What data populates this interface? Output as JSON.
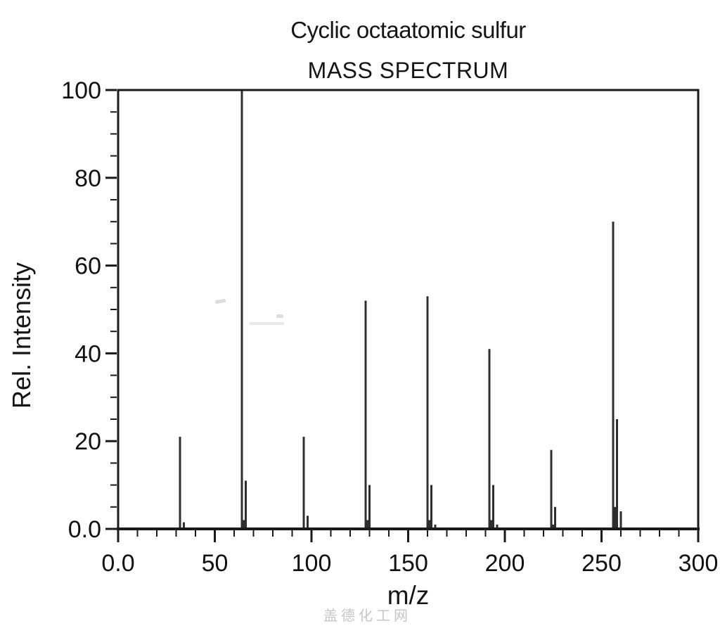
{
  "header": {
    "title": "Cyclic octaatomic sulfur",
    "subtitle": "MASS SPECTRUM"
  },
  "watermark": {
    "text": "盖德化工网",
    "color": "#c6c6c6"
  },
  "colors": {
    "axis": "#1a1a1a",
    "text": "#111111",
    "peak": "#2e2e2e",
    "background": "#ffffff"
  },
  "chart_data": {
    "type": "bar",
    "title": "Cyclic octaatomic sulfur",
    "subtitle": "MASS SPECTRUM",
    "xlabel": "m/z",
    "ylabel": "Rel. Intensity",
    "xlim": [
      0,
      300
    ],
    "ylim": [
      0,
      100
    ],
    "grid": false,
    "legend": "none",
    "x_ticks": [
      {
        "value": 0,
        "label": "0.0"
      },
      {
        "value": 50,
        "label": "50"
      },
      {
        "value": 100,
        "label": "100"
      },
      {
        "value": 150,
        "label": "150"
      },
      {
        "value": 200,
        "label": "200"
      },
      {
        "value": 250,
        "label": "250"
      },
      {
        "value": 300,
        "label": "300"
      }
    ],
    "y_ticks": [
      {
        "value": 0,
        "label": "0.0"
      },
      {
        "value": 20,
        "label": "20"
      },
      {
        "value": 40,
        "label": "40"
      },
      {
        "value": 60,
        "label": "60"
      },
      {
        "value": 80,
        "label": "80"
      },
      {
        "value": 100,
        "label": "100"
      }
    ],
    "x_minor_step": 10,
    "y_minor_step": 5,
    "peaks": [
      {
        "mz": 32,
        "intensity": 21
      },
      {
        "mz": 34,
        "intensity": 1.5
      },
      {
        "mz": 64,
        "intensity": 100
      },
      {
        "mz": 65,
        "intensity": 2
      },
      {
        "mz": 66,
        "intensity": 11
      },
      {
        "mz": 96,
        "intensity": 21
      },
      {
        "mz": 98,
        "intensity": 3
      },
      {
        "mz": 128,
        "intensity": 52
      },
      {
        "mz": 129,
        "intensity": 2
      },
      {
        "mz": 130,
        "intensity": 10
      },
      {
        "mz": 160,
        "intensity": 53
      },
      {
        "mz": 161,
        "intensity": 2
      },
      {
        "mz": 162,
        "intensity": 10
      },
      {
        "mz": 164,
        "intensity": 1
      },
      {
        "mz": 192,
        "intensity": 41
      },
      {
        "mz": 193,
        "intensity": 2
      },
      {
        "mz": 194,
        "intensity": 10
      },
      {
        "mz": 196,
        "intensity": 1
      },
      {
        "mz": 224,
        "intensity": 18
      },
      {
        "mz": 225,
        "intensity": 1
      },
      {
        "mz": 226,
        "intensity": 5
      },
      {
        "mz": 256,
        "intensity": 70
      },
      {
        "mz": 257,
        "intensity": 5
      },
      {
        "mz": 258,
        "intensity": 25
      },
      {
        "mz": 260,
        "intensity": 4
      }
    ]
  }
}
